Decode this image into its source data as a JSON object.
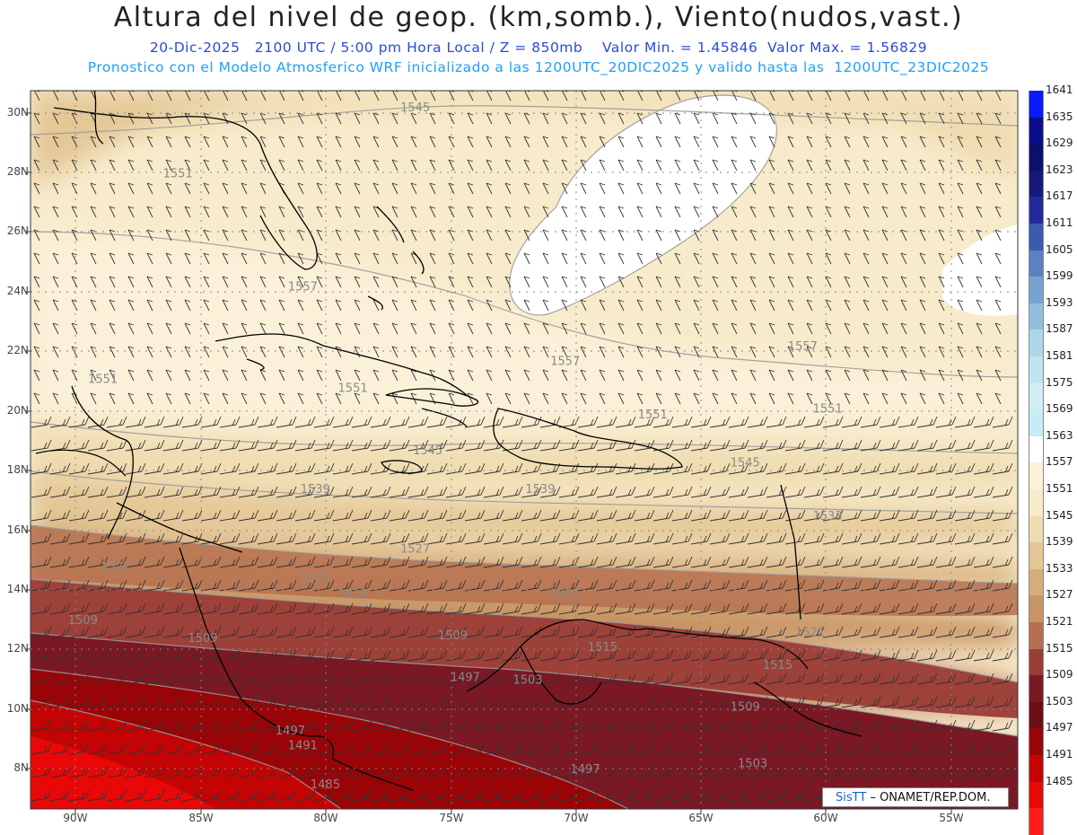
{
  "header": {
    "title": "Altura del nivel de geop. (km,somb.), Viento(nudos,vast.)",
    "subtitle1": "20-Dic-2025   2100 UTC / 5:00 pm Hora Local / Z = 850mb    Valor Min. = 1.45846  Valor Max. = 1.56829",
    "subtitle2": "Pronostico con el Modelo Atmosferico WRF inicializado a las 1200UTC_20DIC2025 y valido hasta las  1200UTC_23DIC2025"
  },
  "axes": {
    "lat_labels": [
      "30N",
      "28N",
      "26N",
      "24N",
      "22N",
      "20N",
      "18N",
      "16N",
      "14N",
      "12N",
      "10N",
      "8N"
    ],
    "lon_labels": [
      "90W",
      "85W",
      "80W",
      "75W",
      "70W",
      "65W",
      "60W",
      "55W"
    ]
  },
  "contour_labels": [
    {
      "text": "1545",
      "lon": -77.0,
      "lat": 30.0
    },
    {
      "text": "1551",
      "lon": -86.5,
      "lat": 27.8
    },
    {
      "text": "1557",
      "lon": -81.5,
      "lat": 24.0
    },
    {
      "text": "1551",
      "lon": -89.5,
      "lat": 20.9
    },
    {
      "text": "1551",
      "lon": -79.5,
      "lat": 20.6
    },
    {
      "text": "1557",
      "lon": -71.0,
      "lat": 21.5
    },
    {
      "text": "1557",
      "lon": -61.5,
      "lat": 22.0
    },
    {
      "text": "1551",
      "lon": -67.5,
      "lat": 19.7
    },
    {
      "text": "1551",
      "lon": -60.5,
      "lat": 19.9
    },
    {
      "text": "1545",
      "lon": -76.5,
      "lat": 18.5
    },
    {
      "text": "1545",
      "lon": -63.8,
      "lat": 18.1
    },
    {
      "text": "1539",
      "lon": -81.0,
      "lat": 17.2
    },
    {
      "text": "1539",
      "lon": -72.0,
      "lat": 17.2
    },
    {
      "text": "1533",
      "lon": -60.5,
      "lat": 16.3
    },
    {
      "text": "1527",
      "lon": -77.0,
      "lat": 15.2
    },
    {
      "text": "1521",
      "lon": -89.0,
      "lat": 14.6
    },
    {
      "text": "1521",
      "lon": -81.0,
      "lat": 14.2
    },
    {
      "text": "1521",
      "lon": -71.0,
      "lat": 13.7
    },
    {
      "text": "1515",
      "lon": -79.5,
      "lat": 13.7
    },
    {
      "text": "1515",
      "lon": -69.5,
      "lat": 11.9
    },
    {
      "text": "1515",
      "lon": -62.5,
      "lat": 11.3
    },
    {
      "text": "1509",
      "lon": -90.3,
      "lat": 12.8
    },
    {
      "text": "1509",
      "lon": -85.5,
      "lat": 12.2
    },
    {
      "text": "1509",
      "lon": -75.5,
      "lat": 12.3
    },
    {
      "text": "1509",
      "lon": -63.8,
      "lat": 9.9
    },
    {
      "text": "1521",
      "lon": -61.2,
      "lat": 12.4
    },
    {
      "text": "1503",
      "lon": -72.5,
      "lat": 10.8
    },
    {
      "text": "1503",
      "lon": -63.5,
      "lat": 8.0
    },
    {
      "text": "1497",
      "lon": -75.0,
      "lat": 10.9
    },
    {
      "text": "1497",
      "lon": -82.0,
      "lat": 9.1
    },
    {
      "text": "1491",
      "lon": -81.5,
      "lat": 8.6
    },
    {
      "text": "1497",
      "lon": -70.2,
      "lat": 7.8
    },
    {
      "text": "1485",
      "lon": -80.6,
      "lat": 7.3
    }
  ],
  "legend": [
    {
      "label": "1641",
      "color": "#0a1aff"
    },
    {
      "label": "1635",
      "color": "#0b0d8a"
    },
    {
      "label": "1629",
      "color": "#0b0f6e"
    },
    {
      "label": "1623",
      "color": "#151979"
    },
    {
      "label": "1617",
      "color": "#23299b"
    },
    {
      "label": "1611",
      "color": "#3d5ab1"
    },
    {
      "label": "1605",
      "color": "#5b81c2"
    },
    {
      "label": "1599",
      "color": "#76a3d1"
    },
    {
      "label": "1593",
      "color": "#92bfdf"
    },
    {
      "label": "1587",
      "color": "#add6ea"
    },
    {
      "label": "1581",
      "color": "#c2e4f1"
    },
    {
      "label": "1575",
      "color": "#d2edf6"
    },
    {
      "label": "1569",
      "color": "#c6ecf5"
    },
    {
      "label": "1563",
      "color": "#ffffff"
    },
    {
      "label": "1557",
      "color": "#fbf1d9"
    },
    {
      "label": "1551",
      "color": "#f8ebcb"
    },
    {
      "label": "1545",
      "color": "#efdcb0"
    },
    {
      "label": "1539",
      "color": "#e4c796"
    },
    {
      "label": "1533",
      "color": "#d7ae7b"
    },
    {
      "label": "1527",
      "color": "#c99463"
    },
    {
      "label": "1521",
      "color": "#b6704f"
    },
    {
      "label": "1515",
      "color": "#9b3d37"
    },
    {
      "label": "1509",
      "color": "#7a1824"
    },
    {
      "label": "1503",
      "color": "#6a0d14"
    },
    {
      "label": "1497",
      "color": "#990407"
    },
    {
      "label": "1491",
      "color": "#c40404"
    },
    {
      "label": "1485",
      "color": "#e80808"
    },
    {
      "label": "",
      "color": "#ff1a1a"
    }
  ],
  "credit": {
    "logo": "SisTT",
    "text": "– ONAMET/REP.DOM."
  }
}
